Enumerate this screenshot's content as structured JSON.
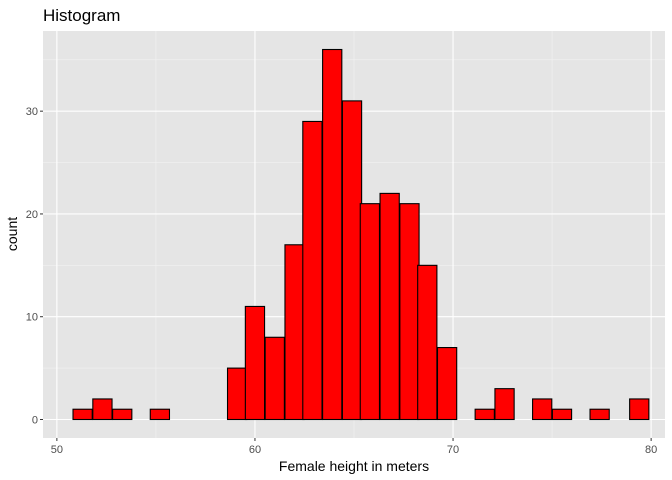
{
  "chart_data": {
    "type": "bar",
    "title": "Histogram",
    "xlabel": "Female height in meters",
    "ylabel": "count",
    "xlim": [
      49.3,
      80.7
    ],
    "ylim": [
      -1.8,
      37.8
    ],
    "x_ticks": [
      50,
      60,
      70,
      80
    ],
    "y_ticks": [
      0,
      10,
      20,
      30
    ],
    "bin_width": 0.97,
    "bins": [
      {
        "x": 51.3,
        "count": 1
      },
      {
        "x": 52.3,
        "count": 2
      },
      {
        "x": 53.3,
        "count": 1
      },
      {
        "x": 54.2,
        "count": 0
      },
      {
        "x": 55.2,
        "count": 1
      },
      {
        "x": 56.2,
        "count": 0
      },
      {
        "x": 57.1,
        "count": 0
      },
      {
        "x": 58.1,
        "count": 0
      },
      {
        "x": 59.1,
        "count": 5
      },
      {
        "x": 60.0,
        "count": 11
      },
      {
        "x": 61.0,
        "count": 8
      },
      {
        "x": 62.0,
        "count": 17
      },
      {
        "x": 62.9,
        "count": 29
      },
      {
        "x": 63.9,
        "count": 36
      },
      {
        "x": 64.9,
        "count": 31
      },
      {
        "x": 65.8,
        "count": 21
      },
      {
        "x": 66.8,
        "count": 22
      },
      {
        "x": 67.8,
        "count": 21
      },
      {
        "x": 68.7,
        "count": 15
      },
      {
        "x": 69.7,
        "count": 7
      },
      {
        "x": 70.7,
        "count": 0
      },
      {
        "x": 71.6,
        "count": 1
      },
      {
        "x": 72.6,
        "count": 3
      },
      {
        "x": 73.6,
        "count": 0
      },
      {
        "x": 74.5,
        "count": 2
      },
      {
        "x": 75.5,
        "count": 1
      },
      {
        "x": 76.5,
        "count": 0
      },
      {
        "x": 77.4,
        "count": 1
      },
      {
        "x": 78.4,
        "count": 0
      },
      {
        "x": 79.4,
        "count": 2
      }
    ],
    "grid": true,
    "colors": {
      "panel": "#e5e5e5",
      "grid_major": "#ffffff",
      "grid_minor": "#f2f2f2",
      "bar_fill": "#ff0000",
      "bar_stroke": "#000000",
      "tick": "#333333"
    }
  }
}
